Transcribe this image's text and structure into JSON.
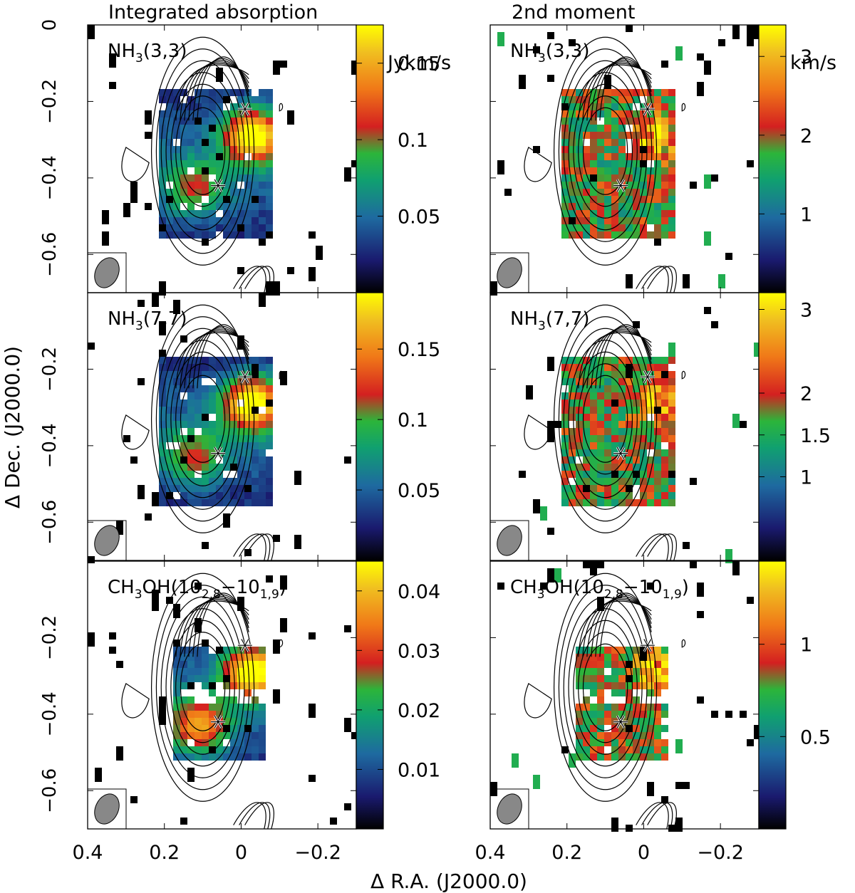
{
  "figure": {
    "col_titles": [
      "Integrated absorption",
      "2nd moment"
    ],
    "xlabel": "Δ R.A. (J2000.0)",
    "ylabel": "Δ Dec. (J2000.0)"
  },
  "chart_data": {
    "type": "heatmap",
    "x_range": [
      0.4,
      -0.3
    ],
    "y_range": [
      -0.7,
      0.0
    ],
    "x_ticks": [
      0.4,
      0.2,
      0,
      -0.2
    ],
    "x_tick_labels": [
      "0.4",
      "0.2",
      "0",
      "−0.2"
    ],
    "y_ticks": [
      0,
      -0.2,
      -0.4,
      -0.6
    ],
    "y_tick_labels": [
      "0",
      "−0.2",
      "−0.4",
      "−0.6"
    ],
    "markers": [
      {
        "x": -0.01,
        "y": -0.22
      },
      {
        "x": 0.06,
        "y": -0.42
      }
    ],
    "colormap": [
      "#000000",
      "#1a1a6e",
      "#1e6aa0",
      "#10a070",
      "#2cb53a",
      "#d42020",
      "#f07818",
      "#f0c020",
      "#ffff00"
    ],
    "panels": [
      {
        "row": 0,
        "col": 0,
        "label": "NH3(3,3)",
        "quantity": "integrated absorption",
        "colorbar": {
          "unit": "Jykm/s",
          "min": 0,
          "max": 0.175,
          "ticks": [
            0.05,
            0.1,
            0.15
          ],
          "tick_labels": [
            "0.05",
            "0.1",
            "0.15"
          ]
        },
        "peaks": [
          {
            "x": -0.03,
            "y": -0.29,
            "level": 1.0
          },
          {
            "x": 0.12,
            "y": -0.43,
            "level": 0.45
          }
        ]
      },
      {
        "row": 0,
        "col": 1,
        "label": "NH3(3,3)",
        "quantity": "2nd moment",
        "colorbar": {
          "unit": "km/s",
          "min": 0,
          "max": 3.4,
          "ticks": [
            1,
            2,
            3
          ],
          "tick_labels": [
            "1",
            "2",
            "3"
          ]
        },
        "peaks": [
          {
            "x": -0.03,
            "y": -0.29,
            "level": 1.0
          }
        ]
      },
      {
        "row": 1,
        "col": 0,
        "label": "NH3(7,7)",
        "quantity": "integrated absorption",
        "colorbar": {
          "unit": "",
          "min": 0,
          "max": 0.19,
          "ticks": [
            0.05,
            0.1,
            0.15
          ],
          "tick_labels": [
            "0.05",
            "0.1",
            "0.15"
          ]
        },
        "peaks": [
          {
            "x": -0.03,
            "y": -0.29,
            "level": 1.0
          },
          {
            "x": 0.12,
            "y": -0.43,
            "level": 0.45
          }
        ]
      },
      {
        "row": 1,
        "col": 1,
        "label": "NH3(7,7)",
        "quantity": "2nd moment",
        "colorbar": {
          "unit": "",
          "min": 0,
          "max": 3.2,
          "ticks": [
            1,
            1.5,
            2,
            3
          ],
          "tick_labels": [
            "1",
            "1.5",
            "2",
            "3"
          ]
        },
        "peaks": [
          {
            "x": -0.03,
            "y": -0.29,
            "level": 1.0
          }
        ]
      },
      {
        "row": 2,
        "col": 0,
        "label": "CH3OH(10 2,8 − 10 1,9)",
        "quantity": "integrated absorption",
        "colorbar": {
          "unit": "",
          "min": 0,
          "max": 0.045,
          "ticks": [
            0.01,
            0.02,
            0.03,
            0.04
          ],
          "tick_labels": [
            "0.01",
            "0.02",
            "0.03",
            "0.04"
          ]
        },
        "peaks": [
          {
            "x": -0.03,
            "y": -0.29,
            "level": 1.0
          },
          {
            "x": 0.11,
            "y": -0.43,
            "level": 0.7
          }
        ]
      },
      {
        "row": 2,
        "col": 1,
        "label": "CH3OH(10 2,8 − 10 1,9)",
        "quantity": "2nd moment",
        "colorbar": {
          "unit": "",
          "min": 0,
          "max": 1.45,
          "ticks": [
            0.5,
            1
          ],
          "tick_labels": [
            "0.5",
            "1"
          ]
        },
        "peaks": [
          {
            "x": -0.03,
            "y": -0.29,
            "level": 0.9
          }
        ]
      }
    ]
  }
}
